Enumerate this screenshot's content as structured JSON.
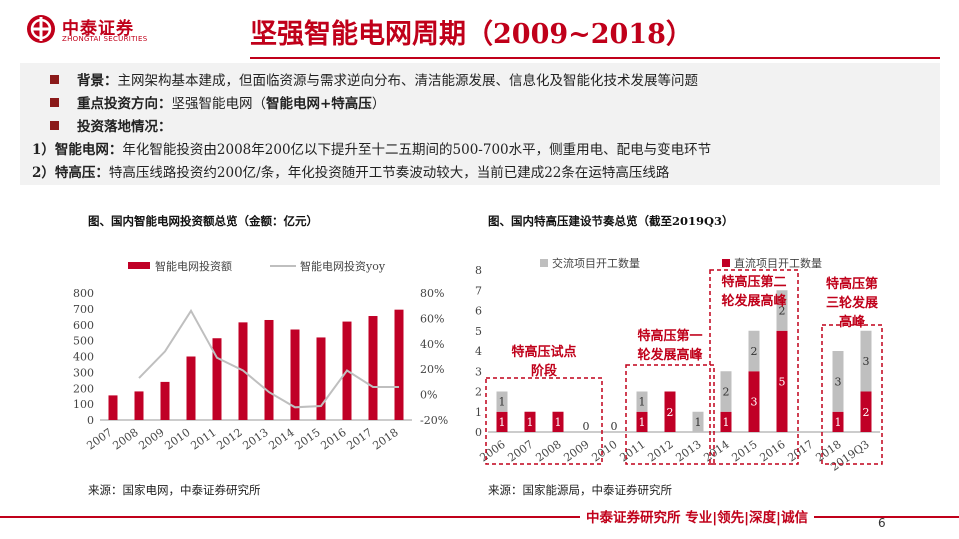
{
  "header": {
    "logo_cn": "中泰证券",
    "logo_en": "ZHONGTAI SECURITIES",
    "title": "坚强智能电网周期（2009~2018）"
  },
  "summary": {
    "line1_label": "背景：",
    "line1_text": "主网架构基本建成，但面临资源与需求逆向分布、清洁能源发展、信息化及智能化技术发展等问题",
    "line2_label": "重点投资方向：",
    "line2_text": "坚强智能电网（",
    "line2_bold": "智能电网+特高压",
    "line2_tail": "）",
    "line3_label": "投资落地情况：",
    "line4_label": "1）智能电网：",
    "line4_text": "年化智能投资由2008年200亿以下提升至十二五期间的500-700水平，侧重用电、配电与变电环节",
    "line5_label": "2）特高压：",
    "line5_text": "特高压线路投资约200亿/条，年化投资随开工节奏波动较大，当前已建成22条在运特高压线路"
  },
  "footer": {
    "text": "中泰证券研究所 专业|领先|深度|诚信",
    "page": "6"
  },
  "chart_data": [
    {
      "type": "bar",
      "title": "图、国内智能电网投资额总览（金额：亿元）",
      "source": "来源：国家电网，中泰证券研究所",
      "categories": [
        "2007",
        "2008",
        "2009",
        "2010",
        "2011",
        "2012",
        "2013",
        "2014",
        "2015",
        "2016",
        "2017",
        "2018"
      ],
      "series": [
        {
          "name": "智能电网投资额",
          "type": "bar",
          "axis": "left",
          "color": "#c00026",
          "values": [
            155,
            180,
            240,
            400,
            515,
            615,
            630,
            570,
            520,
            620,
            655,
            695
          ]
        },
        {
          "name": "智能电网投资yoy",
          "type": "line",
          "axis": "right",
          "color": "#bfbfbf",
          "values": [
            null,
            0.13,
            0.34,
            0.66,
            0.29,
            0.19,
            0.02,
            -0.1,
            -0.09,
            0.19,
            0.06,
            0.06
          ]
        }
      ],
      "ylim": [
        0,
        800
      ],
      "yticks": [
        0,
        100,
        200,
        300,
        400,
        500,
        600,
        700,
        800
      ],
      "y2lim": [
        -0.2,
        0.8
      ],
      "y2ticks": [
        "-20%",
        "0%",
        "20%",
        "40%",
        "60%",
        "80%"
      ],
      "legend_position": "top"
    },
    {
      "type": "bar",
      "stacked": true,
      "title": "图、国内特高压建设节奏总览（截至2019Q3）",
      "source": "来源：国家能源局，中泰证券研究所",
      "categories": [
        "2006",
        "2007",
        "2008",
        "2009",
        "2010",
        "2011",
        "2012",
        "2013",
        "2014",
        "2015",
        "2016",
        "2017",
        "2018",
        "2019Q3"
      ],
      "series": [
        {
          "name": "直流项目开工数量",
          "color": "#c00026",
          "values": [
            1,
            1,
            1,
            0,
            0,
            1,
            2,
            0,
            1,
            3,
            5,
            0,
            1,
            2
          ]
        },
        {
          "name": "交流项目开工数量",
          "color": "#bfbfbf",
          "values": [
            1,
            0,
            0,
            0,
            0,
            1,
            0,
            1,
            2,
            2,
            2,
            0,
            3,
            3
          ]
        }
      ],
      "zero_labels": [
        "2009",
        "2010"
      ],
      "ylim": [
        0,
        8
      ],
      "yticks": [
        0,
        1,
        2,
        3,
        4,
        5,
        6,
        7,
        8
      ],
      "legend_position": "top",
      "annotations": [
        {
          "text": "特高压试点阶段",
          "from": "2006",
          "to": "2009"
        },
        {
          "text": "特高压第一轮发展高峰",
          "from": "2011",
          "to": "2013"
        },
        {
          "text": "特高压第二轮发展高峰",
          "from": "2014",
          "to": "2016"
        },
        {
          "text": "特高压第三轮发展高峰",
          "from": "2018",
          "to": "2019Q3"
        }
      ]
    }
  ]
}
